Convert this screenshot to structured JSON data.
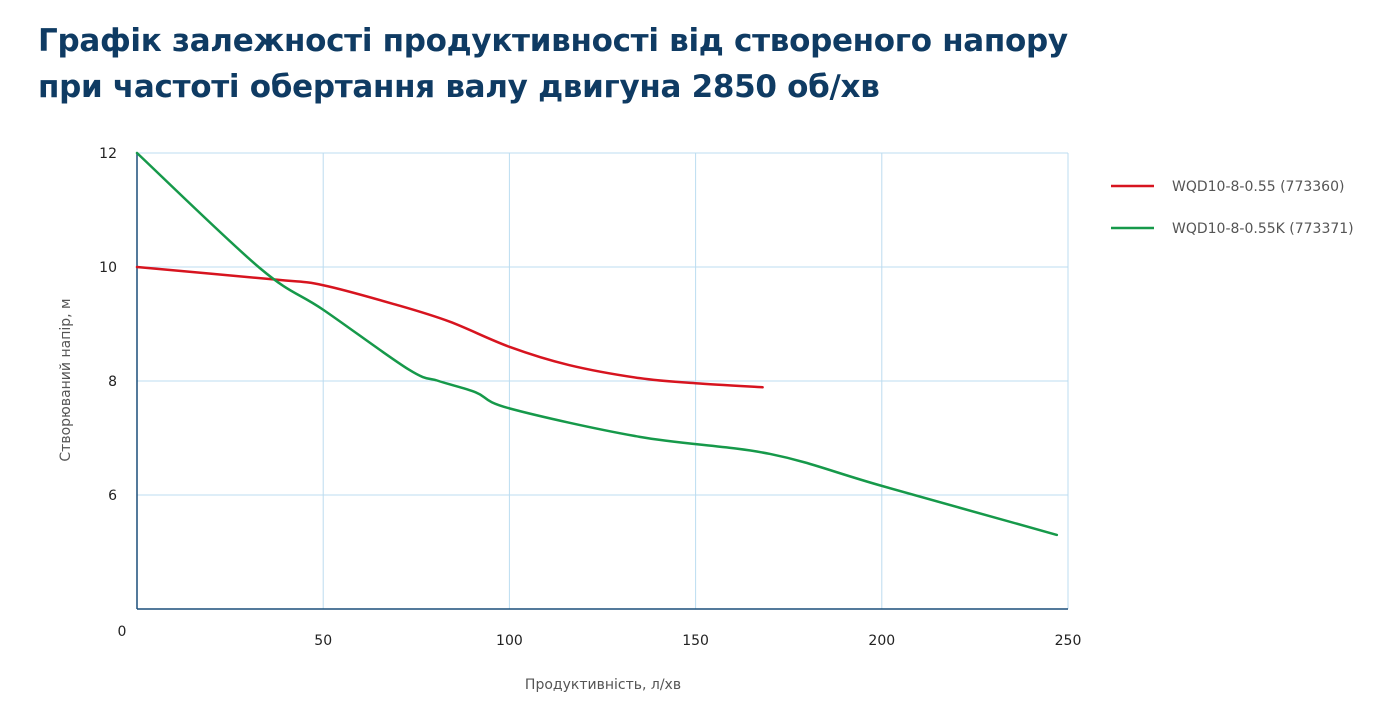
{
  "chart_data": {
    "type": "line",
    "title_lines": [
      "Графік залежності продуктивності від створеного напору",
      "при частоті обертання валу двигуна 2850 об/хв"
    ],
    "xlabel": "Продуктивність, л/хв",
    "ylabel": "Створюваний напір, м",
    "xlim": [
      0,
      250
    ],
    "ylim": [
      4,
      12
    ],
    "x_ticks": [
      0,
      50,
      100,
      150,
      200,
      250
    ],
    "y_ticks": [
      6,
      8,
      10,
      12
    ],
    "grid": true,
    "legend_position": "right",
    "series": [
      {
        "name": "WQD10-8-0.55 (773360)",
        "color": "#d7141f",
        "x": [
          0,
          37,
          50,
          70,
          84,
          100,
          116,
          135,
          150,
          168
        ],
        "y": [
          10,
          9.78,
          9.68,
          9.33,
          9.04,
          8.6,
          8.28,
          8.05,
          7.96,
          7.89
        ]
      },
      {
        "name": "WQD10-8-0.55K (773371)",
        "color": "#16994a",
        "x": [
          0,
          33,
          50,
          73,
          81,
          91,
          100,
          135,
          170,
          200,
          247
        ],
        "y": [
          12,
          9.98,
          9.25,
          8.2,
          8.0,
          7.8,
          7.52,
          7.02,
          6.72,
          6.16,
          5.3
        ]
      }
    ]
  }
}
